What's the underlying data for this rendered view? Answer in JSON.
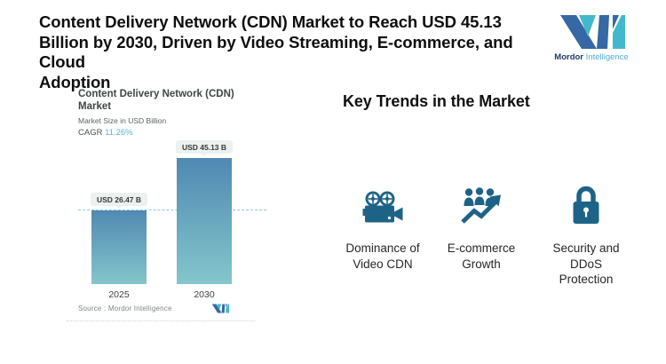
{
  "header": {
    "title_lines": [
      "Content Delivery Network (CDN) Market to Reach USD 45.13",
      "Billion by 2030, Driven by Video Streaming, E-commerce, and Cloud",
      "Adoption"
    ]
  },
  "brand": {
    "name_bold": "Mordor",
    "name_light": "Intelligence"
  },
  "chart_data": {
    "type": "bar",
    "title": "Content Delivery Network (CDN) Market",
    "subtitle": "Market Size in USD Billion",
    "cagr_label": "CAGR",
    "cagr_value": "11.26%",
    "categories": [
      "2025",
      "2030"
    ],
    "values": [
      26.47,
      45.13
    ],
    "value_labels": [
      "USD 26.47 B",
      "USD 45.13 B"
    ],
    "unit": "USD Billion",
    "ylim": [
      0,
      45.13
    ],
    "grid": false,
    "legend": "none",
    "reference_line": {
      "at_value": 26.47,
      "style": "dashed"
    },
    "source": "Source :  Mordor Intelligence"
  },
  "trends": {
    "heading": "Key Trends in the Market",
    "items": [
      {
        "icon": "movie-camera-icon",
        "label": "Dominance of Video CDN"
      },
      {
        "icon": "people-growth-arrow-icon",
        "label": "E-commerce Growth"
      },
      {
        "icon": "padlock-icon",
        "label": "Security and DDoS Protection"
      }
    ]
  },
  "colors": {
    "icon_blue": "#1d6387",
    "bar_top": "#5089b3",
    "bar_bottom": "#84c6cb",
    "accent_teal": "#43b8cc",
    "brand_blue": "#3568a4",
    "cagr_value_color": "#58b2d3",
    "dashed_line_color": "#90c5da"
  }
}
